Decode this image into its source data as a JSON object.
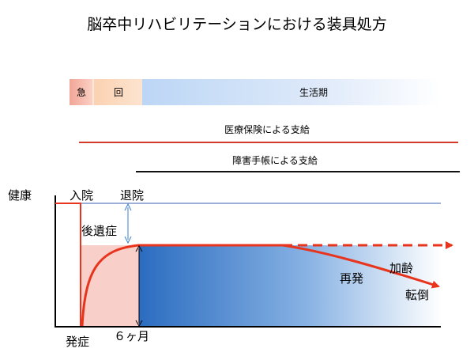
{
  "title": "脳卒中リハビリテーションにおける装具処方",
  "phases": {
    "acute": "急",
    "recovery": "回",
    "life": "生活期"
  },
  "coverage": {
    "medical_insurance": "医療保険による支給",
    "disability_handbook": "障害手帳による支給"
  },
  "labels": {
    "y_axis": "健康",
    "admission": "入院",
    "discharge": "退院",
    "sequelae": "後遺症",
    "onset": "発症",
    "six_months": "６ヶ月",
    "recurrence": "再発",
    "aging": "加齢",
    "fall": "転倒"
  },
  "colors": {
    "title": "#000000",
    "curve": "#e8341c",
    "acute_band": "#f7b6a8",
    "recovery_band": "#fbd6b8",
    "life_band": "#cfe1f7",
    "medical_line": "#d23a2a",
    "medical_glow": "#9fe3ef",
    "handbook_line": "#111111",
    "handbook_glow": "#f5a4a4",
    "fill_blue": "#2f72c2",
    "acute_fill": "#f7c8c3",
    "guide_line": "#3a5fb0"
  }
}
